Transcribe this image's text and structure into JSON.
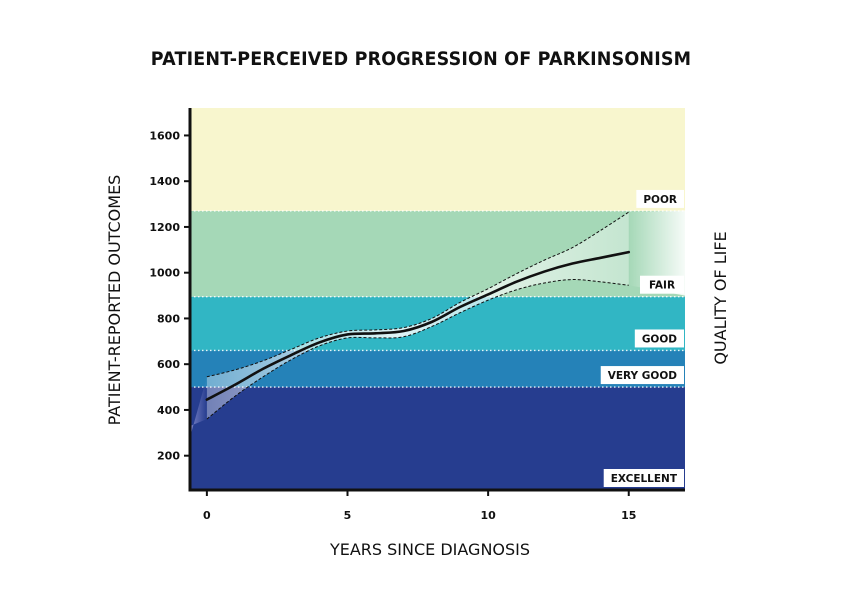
{
  "chart_data": {
    "type": "line",
    "title": "PATIENT-PERCEIVED PROGRESSION OF PARKINSONISM",
    "xlabel": "YEARS SINCE DIAGNOSIS",
    "ylabel": "PATIENT-REPORTED OUTCOMES",
    "right_label": "QUALITY OF LIFE",
    "xlim": [
      -0.6,
      17
    ],
    "ylim": [
      50,
      1720
    ],
    "x_ticks": [
      0,
      5,
      10,
      15
    ],
    "y_ticks": [
      200,
      400,
      600,
      800,
      1000,
      1200,
      1400,
      1600
    ],
    "grid": false,
    "bands": [
      {
        "label": "EXCELLENT",
        "from": 50,
        "to": 500,
        "color": "#263d8f"
      },
      {
        "label": "VERY GOOD",
        "from": 500,
        "to": 660,
        "color": "#2582b8"
      },
      {
        "label": "GOOD",
        "from": 660,
        "to": 895,
        "color": "#31b6c4"
      },
      {
        "label": "FAIR",
        "from": 895,
        "to": 1270,
        "color": "#a5d8b7"
      },
      {
        "label": "POOR",
        "from": 1270,
        "to": 1720,
        "color": "#f8f6ce"
      }
    ],
    "series": [
      {
        "role": "mean",
        "color": "#111111",
        "x": [
          0,
          1,
          2,
          3,
          4,
          5,
          6,
          7,
          8,
          9,
          10,
          11,
          12,
          13,
          14,
          15
        ],
        "y": [
          445,
          510,
          580,
          640,
          695,
          730,
          735,
          745,
          785,
          850,
          905,
          960,
          1005,
          1040,
          1065,
          1090
        ]
      },
      {
        "role": "upper confidence bound",
        "color": "#111111",
        "x": [
          0,
          1,
          2,
          3,
          4,
          5,
          6,
          7,
          8,
          9,
          10,
          11,
          12,
          13,
          14,
          15
        ],
        "y": [
          545,
          575,
          615,
          665,
          715,
          745,
          750,
          760,
          800,
          870,
          930,
          995,
          1055,
          1110,
          1185,
          1265
        ]
      },
      {
        "role": "lower confidence bound",
        "color": "#111111",
        "x": [
          0,
          1,
          2,
          3,
          4,
          5,
          6,
          7,
          8,
          9,
          10,
          11,
          12,
          13,
          14,
          15
        ],
        "y": [
          360,
          460,
          545,
          620,
          680,
          715,
          715,
          720,
          765,
          825,
          880,
          925,
          955,
          970,
          960,
          945
        ]
      }
    ]
  }
}
